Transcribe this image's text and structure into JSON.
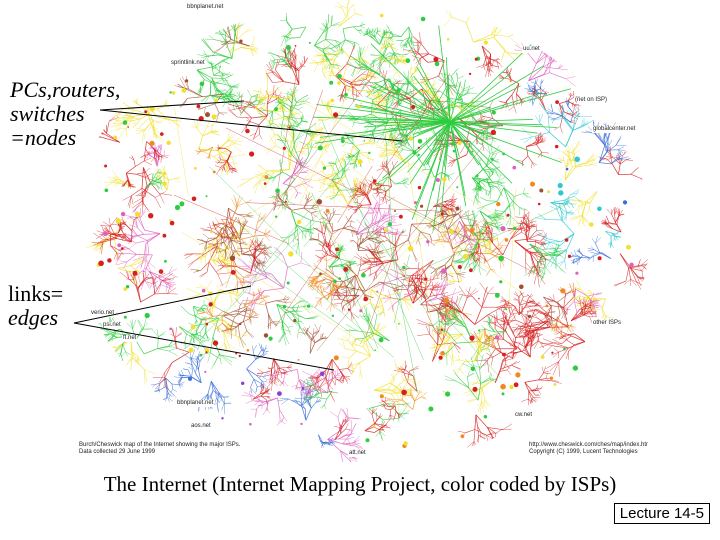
{
  "labels": {
    "nodes_lines": [
      "PCs,routers,",
      "switches",
      "=nodes"
    ],
    "links_lines": [
      "links=",
      "edges"
    ]
  },
  "isp_labels": {
    "bbnplanet": "bbnplanet.net",
    "spantlink": "sprintlink.net",
    "uunet": "uu.net",
    "net_isp": "(net on ISP)",
    "globalcenter": "globalcenter.net",
    "verio": "verio.net",
    "psi": "psi.net",
    "ft": "ft.net",
    "bbnplanet2": "bbnplanet.net",
    "aos": "aos.net",
    "cw": "cw.net",
    "att": "att.net",
    "other": "other ISPs",
    "credit_left": "Burch/Cheswick map of the Internet showing the major ISPs. Data collected 29 June 1999",
    "credit_right": "http://www.cheswick.com/ches/map/index.html Copyright (C) 1999, Lucent Technologies"
  },
  "caption": "The Internet (Internet Mapping Project, color coded by ISPs)",
  "lecture": "Lecture 14-5",
  "colors": {
    "green": "#2ecc40",
    "red": "#d62020",
    "yellow": "#f2e02a",
    "blue": "#3a6fd8",
    "purple": "#8a3fd0",
    "cyan": "#30c8d0",
    "orange": "#f08a20",
    "pink": "#e060c0",
    "brown": "#a05030"
  }
}
